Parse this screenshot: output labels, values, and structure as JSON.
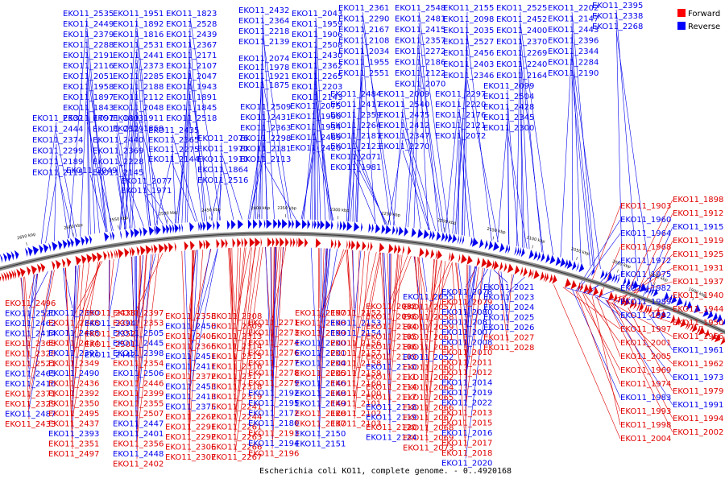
{
  "title": "Escherichia coli KO11, complete genome. - 0..4920168",
  "legend": [
    {
      "label": "Forward",
      "color": "#ff0000"
    },
    {
      "label": "Reverse",
      "color": "#0000ff"
    }
  ],
  "colors": {
    "forward": "#e00000",
    "reverse": "#0000ee",
    "backbone": "#8c8c8c"
  },
  "ticks": [
    "2650 kbp",
    "2600 kbp",
    "2550 kbp",
    "2500 kbp",
    "2450 kbp",
    "2400 kbp",
    "2350 kbp",
    "2300 kbp",
    "2250 kbp",
    "2200 kbp",
    "2150 kbp",
    "2100 kbp",
    "2050 kbp",
    "2000 kbp",
    "1950 kbp",
    "1900 kbp"
  ],
  "labels_top_blue": [
    "EKO11_2535",
    "EKO11_2449",
    "EKO11_2379",
    "EKO11_2288",
    "EKO11_2191",
    "EKO11_2116",
    "EKO11_2051",
    "EKO11_1958",
    "EKO11_1897",
    "EKO11_1843",
    "EKO11_1797",
    "EKO11_2532",
    "EKO11_2444",
    "EKO11_2374",
    "EKO11_2299",
    "EKO11_2189",
    "EKO11_2115",
    "EKO11_2049",
    "EKO11_1951",
    "EKO11_1892",
    "EKO11_1816",
    "EKO11_2531",
    "EKO11_2441",
    "EKO11_2373",
    "EKO11_2285",
    "EKO11_2188",
    "EKO11_2112",
    "EKO11_2048",
    "EKO11_1911",
    "EKO11_1859",
    "EKO11_1803",
    "EKO11_2529",
    "EKO11_2440",
    "EKO11_2369",
    "EKO11_2228",
    "EKO11_2145",
    "EKO11_2077",
    "EKO11_1971",
    "EKO11_1823",
    "EKO11_2528",
    "EKO11_2439",
    "EKO11_2367",
    "EKO11_2171",
    "EKO11_2107",
    "EKO11_2047",
    "EKO11_1943",
    "EKO11_1891",
    "EKO11_1845",
    "EKO11_2518",
    "EKO11_2435",
    "EKO11_2365",
    "EKO11_2275",
    "EKO11_2144",
    "EKO11_2076",
    "EKO11_1970",
    "EKO11_1910",
    "EKO11_1864",
    "EKO11_2516",
    "EKO11_2432",
    "EKO11_2364",
    "EKO11_2218",
    "EKO11_2139",
    "EKO11_2074",
    "EKO11_1978",
    "EKO11_1921",
    "EKO11_1875",
    "EKO11_2509",
    "EKO11_2431",
    "EKO11_2363",
    "EKO11_2298",
    "EKO11_2181",
    "EKO11_2113",
    "EKO11_2043",
    "EKO11_1959",
    "EKO11_1906",
    "EKO11_2508",
    "EKO11_2430",
    "EKO11_2362",
    "EKO11_2265",
    "EKO11_2203",
    "EKO11_2143",
    "EKO11_2075",
    "EKO11_1990",
    "EKO11_1934",
    "EKO11_2489",
    "EKO11_2420",
    "EKO11_2361",
    "EKO11_2290",
    "EKO11_2167",
    "EKO11_2108",
    "EKO11_2034",
    "EKO11_1955",
    "EKO11_2551",
    "EKO11_2484",
    "EKO11_2417",
    "EKO11_2359",
    "EKO11_2264",
    "EKO11_2187",
    "EKO11_2123",
    "EKO11_2071",
    "EKO11_1981",
    "EKO11_2548",
    "EKO11_2481",
    "EKO11_2415",
    "EKO11_2357",
    "EKO11_2272",
    "EKO11_2186",
    "EKO11_2122",
    "EKO11_2070",
    "EKO11_2009",
    "EKO11_2540",
    "EKO11_2475",
    "EKO11_2412",
    "EKO11_2347",
    "EKO11_2270",
    "EKO11_2155",
    "EKO11_2098",
    "EKO11_2035",
    "EKO11_2527",
    "EKO11_2456",
    "EKO11_2403",
    "EKO11_2346",
    "EKO11_2297",
    "EKO11_2220",
    "EKO11_2176",
    "EKO11_2121",
    "EKO11_2072",
    "EKO11_2525",
    "EKO11_2452",
    "EKO11_2400",
    "EKO11_2370",
    "EKO11_2269",
    "EKO11_2240",
    "EKO11_2164",
    "EKO11_2099",
    "EKO11_2504",
    "EKO11_2428",
    "EKO11_2345",
    "EKO11_2300",
    "EKO11_2202",
    "EKO11_2147",
    "EKO11_2443",
    "EKO11_2396",
    "EKO11_2344",
    "EKO11_2284",
    "EKO11_2190",
    "EKO11_2395",
    "EKO11_2338",
    "EKO11_2268"
  ],
  "labels_bottom": [
    {
      "t": "EKO11_2496",
      "c": "r"
    },
    {
      "t": "EKO11_2520",
      "c": "b"
    },
    {
      "t": "EKO11_2462",
      "c": "b"
    },
    {
      "t": "EKO11_2414",
      "c": "b"
    },
    {
      "t": "EKO11_2368",
      "c": "r"
    },
    {
      "t": "EKO11_2328",
      "c": "r"
    },
    {
      "t": "EKO11_2521",
      "c": "r"
    },
    {
      "t": "EKO11_2465",
      "c": "b"
    },
    {
      "t": "EKO11_2416",
      "c": "b"
    },
    {
      "t": "EKO11_2371",
      "c": "r"
    },
    {
      "t": "EKO11_2329",
      "c": "r"
    },
    {
      "t": "EKO11_2487",
      "c": "b"
    },
    {
      "t": "EKO11_2433",
      "c": "r"
    },
    {
      "t": "EKO11_2390",
      "c": "b"
    },
    {
      "t": "EKO11_2348",
      "c": "r"
    },
    {
      "t": "EKO11_2488",
      "c": "b"
    },
    {
      "t": "EKO11_2434",
      "c": "r"
    },
    {
      "t": "EKO11_2391",
      "c": "b"
    },
    {
      "t": "EKO11_2349",
      "c": "r"
    },
    {
      "t": "EKO11_2490",
      "c": "b"
    },
    {
      "t": "EKO11_2436",
      "c": "r"
    },
    {
      "t": "EKO11_2392",
      "c": "r"
    },
    {
      "t": "EKO11_2350",
      "c": "r"
    },
    {
      "t": "EKO11_2495",
      "c": "r"
    },
    {
      "t": "EKO11_2437",
      "c": "r"
    },
    {
      "t": "EKO11_2393",
      "c": "b"
    },
    {
      "t": "EKO11_2351",
      "c": "r"
    },
    {
      "t": "EKO11_2497",
      "c": "r"
    },
    {
      "t": "EKO11_2438",
      "c": "r"
    },
    {
      "t": "EKO11_2394",
      "c": "b"
    },
    {
      "t": "EKO11_2352",
      "c": "r"
    },
    {
      "t": "EKO11_2501",
      "c": "r"
    },
    {
      "t": "EKO11_2442",
      "c": "b"
    },
    {
      "t": "EKO11_2397",
      "c": "r"
    },
    {
      "t": "EKO11_2353",
      "c": "r"
    },
    {
      "t": "EKO11_2505",
      "c": "b"
    },
    {
      "t": "EKO11_2445",
      "c": "b"
    },
    {
      "t": "EKO11_2398",
      "c": "b"
    },
    {
      "t": "EKO11_2354",
      "c": "r"
    },
    {
      "t": "EKO11_2506",
      "c": "b"
    },
    {
      "t": "EKO11_2446",
      "c": "r"
    },
    {
      "t": "EKO11_2399",
      "c": "r"
    },
    {
      "t": "EKO11_2355",
      "c": "r"
    },
    {
      "t": "EKO11_2507",
      "c": "r"
    },
    {
      "t": "EKO11_2447",
      "c": "b"
    },
    {
      "t": "EKO11_2401",
      "c": "b"
    },
    {
      "t": "EKO11_2356",
      "c": "r"
    },
    {
      "t": "EKO11_2448",
      "c": "b"
    },
    {
      "t": "EKO11_2402",
      "c": "r"
    },
    {
      "t": "EKO11_2358",
      "c": "r"
    },
    {
      "t": "EKO11_2450",
      "c": "b"
    },
    {
      "t": "EKO11_2406",
      "c": "r"
    },
    {
      "t": "EKO11_2366",
      "c": "r"
    },
    {
      "t": "EKO11_2451",
      "c": "b"
    },
    {
      "t": "EKO11_2411",
      "c": "b"
    },
    {
      "t": "EKO11_2372",
      "c": "r"
    },
    {
      "t": "EKO11_2453",
      "c": "b"
    },
    {
      "t": "EKO11_2413",
      "c": "b"
    },
    {
      "t": "EKO11_2375",
      "c": "b"
    },
    {
      "t": "EKO11_2262",
      "c": "r"
    },
    {
      "t": "EKO11_2291",
      "c": "r"
    },
    {
      "t": "EKO11_2292",
      "c": "r"
    },
    {
      "t": "EKO11_2306",
      "c": "r"
    },
    {
      "t": "EKO11_2307",
      "c": "r"
    },
    {
      "t": "EKO11_2308",
      "c": "r"
    },
    {
      "t": "EKO11_2309",
      "c": "r"
    },
    {
      "t": "EKO11_2313",
      "c": "r"
    },
    {
      "t": "EKO11_2314",
      "c": "r"
    },
    {
      "t": "EKO11_2315",
      "c": "r"
    },
    {
      "t": "EKO11_2316",
      "c": "r"
    },
    {
      "t": "EKO11_2317",
      "c": "r"
    },
    {
      "t": "EKO11_2318",
      "c": "r"
    },
    {
      "t": "EKO11_2319",
      "c": "r"
    },
    {
      "t": "EKO11_2241",
      "c": "r"
    },
    {
      "t": "EKO11_2244",
      "c": "r"
    },
    {
      "t": "EKO11_2261",
      "c": "r"
    },
    {
      "t": "EKO11_2263",
      "c": "r"
    },
    {
      "t": "EKO11_2266",
      "c": "r"
    },
    {
      "t": "EKO11_2267",
      "c": "r"
    },
    {
      "t": "EKO11_2271",
      "c": "r"
    },
    {
      "t": "EKO11_2273",
      "c": "r"
    },
    {
      "t": "EKO11_2274",
      "c": "r"
    },
    {
      "t": "EKO11_2276",
      "c": "r"
    },
    {
      "t": "EKO11_2277",
      "c": "r"
    },
    {
      "t": "EKO11_2278",
      "c": "r"
    },
    {
      "t": "EKO11_2279",
      "c": "r"
    },
    {
      "t": "EKO11_2192",
      "c": "b"
    },
    {
      "t": "EKO11_2195",
      "c": "b"
    },
    {
      "t": "EKO11_2172",
      "c": "b"
    },
    {
      "t": "EKO11_2180",
      "c": "b"
    },
    {
      "t": "EKO11_2193",
      "c": "r"
    },
    {
      "t": "EKO11_2194",
      "c": "b"
    },
    {
      "t": "EKO11_2196",
      "c": "r"
    },
    {
      "t": "EKO11_2197",
      "c": "r"
    },
    {
      "t": "EKO11_2198",
      "c": "r"
    },
    {
      "t": "EKO11_2199",
      "c": "r"
    },
    {
      "t": "EKO11_2200",
      "c": "b"
    },
    {
      "t": "EKO11_2201",
      "c": "b"
    },
    {
      "t": "EKO11_2204",
      "c": "b"
    },
    {
      "t": "EKO11_2205",
      "c": "r"
    },
    {
      "t": "EKO11_2146",
      "c": "b"
    },
    {
      "t": "EKO11_2148",
      "c": "b"
    },
    {
      "t": "EKO11_2149",
      "c": "b"
    },
    {
      "t": "EKO11_2128",
      "c": "r"
    },
    {
      "t": "EKO11_2137",
      "c": "r"
    },
    {
      "t": "EKO11_2150",
      "c": "b"
    },
    {
      "t": "EKO11_2151",
      "c": "b"
    },
    {
      "t": "EKO11_2152",
      "c": "r"
    },
    {
      "t": "EKO11_2153",
      "c": "b"
    },
    {
      "t": "EKO11_2154",
      "c": "b"
    },
    {
      "t": "EKO11_2156",
      "c": "r"
    },
    {
      "t": "EKO11_2157",
      "c": "r"
    },
    {
      "t": "EKO11_2158",
      "c": "r"
    },
    {
      "t": "EKO11_2159",
      "c": "r"
    },
    {
      "t": "EKO11_2160",
      "c": "r"
    },
    {
      "t": "EKO11_2100",
      "c": "r"
    },
    {
      "t": "EKO11_2101",
      "c": "r"
    },
    {
      "t": "EKO11_2102",
      "c": "r"
    },
    {
      "t": "EKO11_2103",
      "c": "r"
    },
    {
      "t": "EKO11_2088",
      "c": "r"
    },
    {
      "t": "EKO11_2096",
      "c": "r"
    },
    {
      "t": "EKO11_2104",
      "c": "r"
    },
    {
      "t": "EKO11_2105",
      "c": "r"
    },
    {
      "t": "EKO11_2106",
      "c": "r"
    },
    {
      "t": "EKO11_2109",
      "c": "r"
    },
    {
      "t": "EKO11_2110",
      "c": "b"
    },
    {
      "t": "EKO11_2111",
      "c": "r"
    },
    {
      "t": "EKO11_2114",
      "c": "r"
    },
    {
      "t": "EKO11_2117",
      "c": "r"
    },
    {
      "t": "EKO11_2118",
      "c": "b"
    },
    {
      "t": "EKO11_2119",
      "c": "b"
    },
    {
      "t": "EKO11_2120",
      "c": "r"
    },
    {
      "t": "EKO11_2124",
      "c": "b"
    },
    {
      "t": "EKO11_2055",
      "c": "b"
    },
    {
      "t": "EKO11_2057",
      "c": "r"
    },
    {
      "t": "EKO11_2058",
      "c": "r"
    },
    {
      "t": "EKO11_2059",
      "c": "r"
    },
    {
      "t": "EKO11_2061",
      "c": "r"
    },
    {
      "t": "EKO11_2063",
      "c": "r"
    },
    {
      "t": "EKO11_2052",
      "c": "b"
    },
    {
      "t": "EKO11_2060",
      "c": "r"
    },
    {
      "t": "EKO11_2062",
      "c": "r"
    },
    {
      "t": "EKO11_2064",
      "c": "r"
    },
    {
      "t": "EKO11_2065",
      "c": "r"
    },
    {
      "t": "EKO11_2066",
      "c": "r"
    },
    {
      "t": "EKO11_2067",
      "c": "r"
    },
    {
      "t": "EKO11_2068",
      "c": "r"
    },
    {
      "t": "EKO11_2069",
      "c": "r"
    },
    {
      "t": "EKO11_2073",
      "c": "r"
    },
    {
      "t": "EKO11_2078",
      "c": "b"
    },
    {
      "t": "EKO11_2079",
      "c": "r"
    },
    {
      "t": "EKO11_2080",
      "c": "b"
    },
    {
      "t": "EKO11_2081",
      "c": "b"
    },
    {
      "t": "EKO11_2007",
      "c": "b"
    },
    {
      "t": "EKO11_2008",
      "c": "b"
    },
    {
      "t": "EKO11_2010",
      "c": "r"
    },
    {
      "t": "EKO11_2011",
      "c": "r"
    },
    {
      "t": "EKO11_2012",
      "c": "r"
    },
    {
      "t": "EKO11_2014",
      "c": "b"
    },
    {
      "t": "EKO11_2019",
      "c": "b"
    },
    {
      "t": "EKO11_2022",
      "c": "b"
    },
    {
      "t": "EKO11_2013",
      "c": "r"
    },
    {
      "t": "EKO11_2015",
      "c": "r"
    },
    {
      "t": "EKO11_2016",
      "c": "b"
    },
    {
      "t": "EKO11_2017",
      "c": "r"
    },
    {
      "t": "EKO11_2018",
      "c": "r"
    },
    {
      "t": "EKO11_2020",
      "c": "b"
    },
    {
      "t": "EKO11_2021",
      "c": "b"
    },
    {
      "t": "EKO11_2023",
      "c": "b"
    },
    {
      "t": "EKO11_2024",
      "c": "b"
    },
    {
      "t": "EKO11_2025",
      "c": "b"
    },
    {
      "t": "EKO11_2026",
      "c": "b"
    },
    {
      "t": "EKO11_2027",
      "c": "r"
    },
    {
      "t": "EKO11_2028",
      "c": "r"
    }
  ],
  "labels_right": [
    {
      "t": "EKO11_1898",
      "c": "r"
    },
    {
      "t": "EKO11_1903",
      "c": "r"
    },
    {
      "t": "EKO11_1912",
      "c": "r"
    },
    {
      "t": "EKO11_1960",
      "c": "b"
    },
    {
      "t": "EKO11_1915",
      "c": "b"
    },
    {
      "t": "EKO11_1964",
      "c": "b"
    },
    {
      "t": "EKO11_1919",
      "c": "r"
    },
    {
      "t": "EKO11_1968",
      "c": "r"
    },
    {
      "t": "EKO11_1925",
      "c": "r"
    },
    {
      "t": "EKO11_1972",
      "c": "b"
    },
    {
      "t": "EKO11_1931",
      "c": "r"
    },
    {
      "t": "EKO11_1975",
      "c": "b"
    },
    {
      "t": "EKO11_1937",
      "c": "r"
    },
    {
      "t": "EKO11_1982",
      "c": "b"
    },
    {
      "t": "EKO11_1940",
      "c": "r"
    },
    {
      "t": "EKO11_1989",
      "c": "b"
    },
    {
      "t": "EKO11_1944",
      "c": "r"
    },
    {
      "t": "EKO11_1992",
      "c": "b"
    },
    {
      "t": "EKO11_1950",
      "c": "r"
    },
    {
      "t": "EKO11_1997",
      "c": "r"
    },
    {
      "t": "EKO11_1956",
      "c": "r"
    },
    {
      "t": "EKO11_2001",
      "c": "r"
    },
    {
      "t": "EKO11_1961",
      "c": "b"
    },
    {
      "t": "EKO11_2005",
      "c": "r"
    },
    {
      "t": "EKO11_1962",
      "c": "r"
    },
    {
      "t": "EKO11_1969",
      "c": "r"
    },
    {
      "t": "EKO11_1973",
      "c": "b"
    },
    {
      "t": "EKO11_1974",
      "c": "r"
    },
    {
      "t": "EKO11_1979",
      "c": "r"
    },
    {
      "t": "EKO11_1983",
      "c": "b"
    },
    {
      "t": "EKO11_1991",
      "c": "b"
    },
    {
      "t": "EKO11_1993",
      "c": "r"
    },
    {
      "t": "EKO11_1994",
      "c": "r"
    },
    {
      "t": "EKO11_1998",
      "c": "r"
    },
    {
      "t": "EKO11_2002",
      "c": "r"
    },
    {
      "t": "EKO11_2004",
      "c": "r"
    }
  ]
}
